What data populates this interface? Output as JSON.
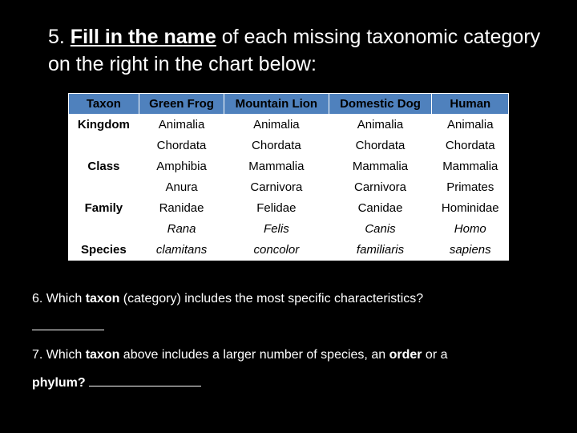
{
  "q5_prefix": "5. ",
  "q5_bold": "Fill in the name",
  "q5_rest": " of each missing taxonomic category on the right in the chart below:",
  "table": {
    "header_bg": "#4f81bd",
    "cell_bg": "#ffffff",
    "border_color": "#ffffff",
    "columns": [
      "Taxon",
      "Green Frog",
      "Mountain Lion",
      "Domestic Dog",
      "Human"
    ],
    "rows": [
      {
        "taxon": "Kingdom",
        "cells": [
          "Animalia",
          "Animalia",
          "Animalia",
          "Animalia"
        ],
        "italic": false
      },
      {
        "taxon": "",
        "cells": [
          "Chordata",
          "Chordata",
          "Chordata",
          "Chordata"
        ],
        "italic": false
      },
      {
        "taxon": "Class",
        "cells": [
          "Amphibia",
          "Mammalia",
          "Mammalia",
          "Mammalia"
        ],
        "italic": false
      },
      {
        "taxon": "",
        "cells": [
          "Anura",
          "Carnivora",
          "Carnivora",
          "Primates"
        ],
        "italic": false
      },
      {
        "taxon": "Family",
        "cells": [
          "Ranidae",
          "Felidae",
          "Canidae",
          "Hominidae"
        ],
        "italic": false
      },
      {
        "taxon": "",
        "cells": [
          "Rana",
          "Felis",
          "Canis",
          "Homo"
        ],
        "italic": true
      },
      {
        "taxon": "Species",
        "cells": [
          "clamitans",
          "concolor",
          "familiaris",
          "sapiens"
        ],
        "italic": true
      }
    ]
  },
  "q6_prefix": "6.  Which ",
  "q6_bold": "taxon",
  "q6_rest": " (category) includes the most specific characteristics?",
  "q7_prefix": " 7.  Which ",
  "q7_bold1": "taxon",
  "q7_mid": " above includes a larger number of species, an ",
  "q7_bold2": "order",
  "q7_mid2": " or a ",
  "q7_bold3": "phylum?"
}
